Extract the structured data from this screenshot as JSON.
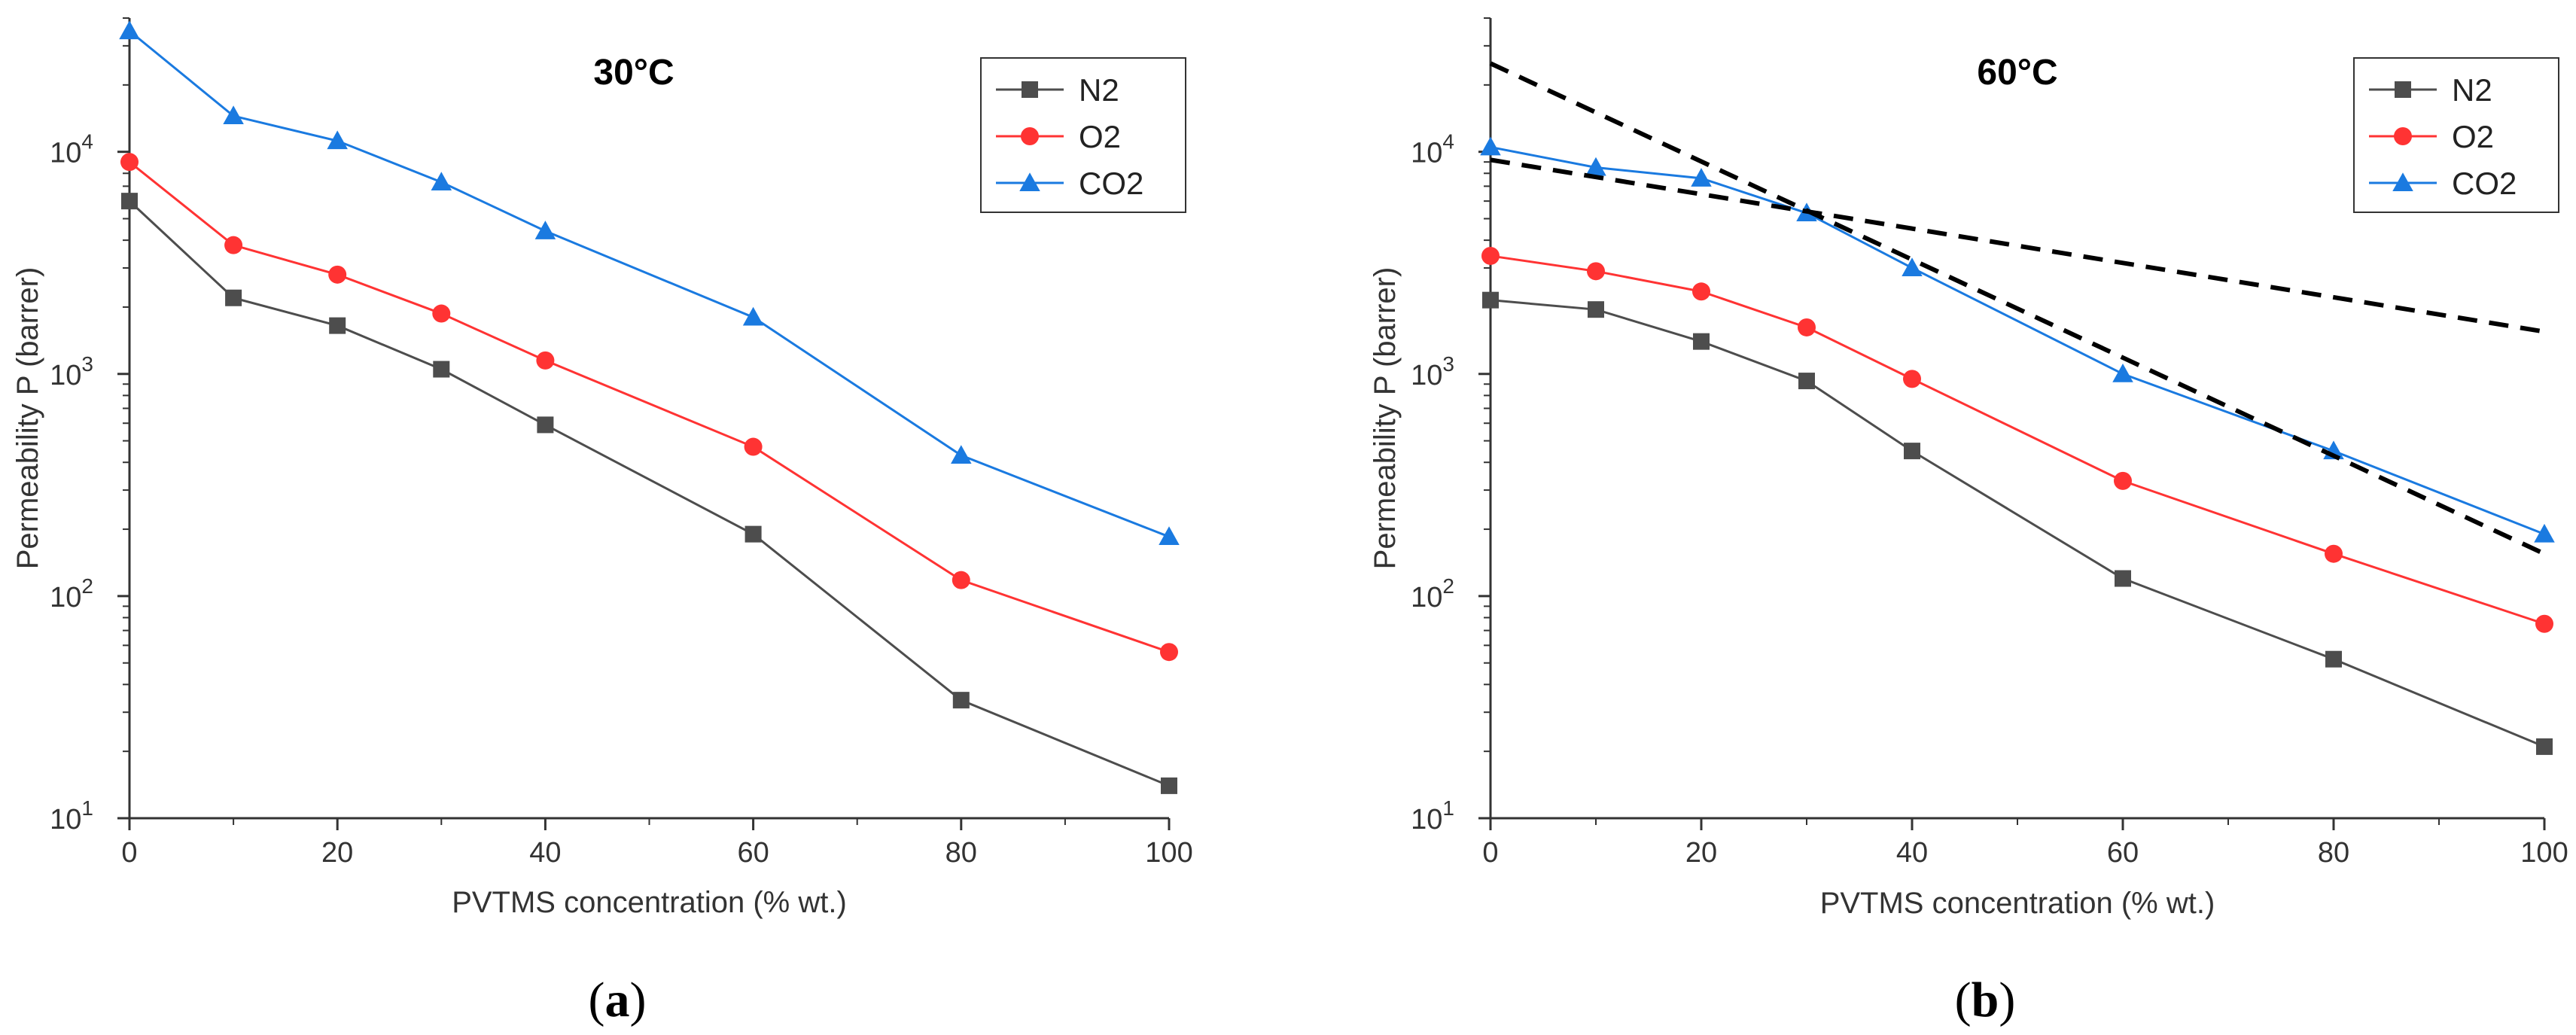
{
  "chart_data": [
    {
      "type": "line",
      "panel_label": "a",
      "title": "30°C",
      "xlabel": "PVTMS concentration (% wt.)",
      "ylabel": "Permeability P (barrer)",
      "xlim": [
        0,
        100
      ],
      "ylim": [
        10,
        40000
      ],
      "yscale": "log",
      "xticks": [
        0,
        20,
        40,
        60,
        80,
        100
      ],
      "yticks": [
        {
          "value": 10,
          "base": "10",
          "exp": "1"
        },
        {
          "value": 100,
          "base": "10",
          "exp": "2"
        },
        {
          "value": 1000,
          "base": "10",
          "exp": "3"
        },
        {
          "value": 10000,
          "base": "10",
          "exp": "4"
        }
      ],
      "legend_position": "top-right",
      "x": [
        0,
        10,
        20,
        30,
        40,
        60,
        80,
        100
      ],
      "series": [
        {
          "name": "N2",
          "color": "#4d4d4d",
          "marker": "square",
          "values": [
            6000,
            2200,
            1650,
            1050,
            590,
            190,
            34,
            14
          ]
        },
        {
          "name": "O2",
          "color": "#ff3333",
          "marker": "circle",
          "values": [
            9000,
            3800,
            2800,
            1870,
            1150,
            470,
            118,
            56
          ]
        },
        {
          "name": "CO2",
          "color": "#1a7ae0",
          "marker": "triangle",
          "values": [
            35000,
            14500,
            11200,
            7300,
            4400,
            1800,
            430,
            185
          ]
        }
      ]
    },
    {
      "type": "line",
      "panel_label": "b",
      "title": "60°C",
      "xlabel": "PVTMS concentration (% wt.)",
      "ylabel": "Permeability P (barrer)",
      "xlim": [
        0,
        100
      ],
      "ylim": [
        10,
        40000
      ],
      "yscale": "log",
      "xticks": [
        0,
        20,
        40,
        60,
        80,
        100
      ],
      "yticks": [
        {
          "value": 10,
          "base": "10",
          "exp": "1"
        },
        {
          "value": 100,
          "base": "10",
          "exp": "2"
        },
        {
          "value": 1000,
          "base": "10",
          "exp": "3"
        },
        {
          "value": 10000,
          "base": "10",
          "exp": "4"
        }
      ],
      "legend_position": "top-right",
      "x": [
        0,
        10,
        20,
        30,
        40,
        60,
        80,
        100
      ],
      "series": [
        {
          "name": "N2",
          "color": "#4d4d4d",
          "marker": "square",
          "values": [
            2150,
            1950,
            1400,
            930,
            450,
            120,
            52,
            21
          ]
        },
        {
          "name": "O2",
          "color": "#ff3333",
          "marker": "circle",
          "values": [
            3400,
            2900,
            2350,
            1620,
            950,
            330,
            155,
            75
          ]
        },
        {
          "name": "CO2",
          "color": "#1a7ae0",
          "marker": "triangle",
          "values": [
            10500,
            8500,
            7600,
            5300,
            3000,
            1000,
            450,
            190
          ]
        }
      ],
      "reference_lines": [
        {
          "style": "dashed",
          "color": "#000000",
          "x": [
            0,
            100
          ],
          "y": [
            25000,
            155
          ]
        },
        {
          "style": "dashed",
          "color": "#000000",
          "x": [
            0,
            100
          ],
          "y": [
            9200,
            1550
          ]
        }
      ]
    }
  ]
}
